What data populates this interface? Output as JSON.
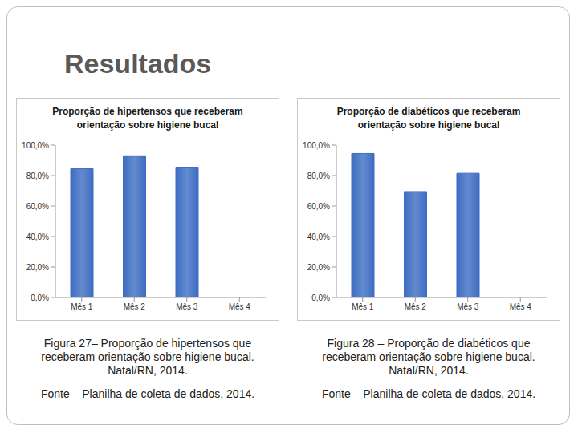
{
  "title": "Resultados",
  "chart_data": [
    {
      "type": "bar",
      "title": "Proporção de hipertensos que receberam orientação sobre higiene bucal",
      "categories": [
        "Mês 1",
        "Mês 2",
        "Mês 3",
        "Mês 4"
      ],
      "values": [
        84.5,
        93,
        85.5,
        null
      ],
      "color": "#3d6dc2",
      "ylim": [
        0,
        100
      ],
      "yticks": [
        {
          "value": 0,
          "label": "0,0%"
        },
        {
          "value": 20,
          "label": "20,0%"
        },
        {
          "value": 40,
          "label": "40,0%"
        },
        {
          "value": 60,
          "label": "60,0%"
        },
        {
          "value": 80,
          "label": "80,0%"
        },
        {
          "value": 100,
          "label": "100,0%"
        }
      ],
      "grid": false,
      "annotations": [
        "Figura 27– Proporção de hipertensos que receberam orientação sobre higiene bucal. Natal/RN, 2014.",
        "Fonte – Planilha de coleta de dados, 2014."
      ]
    },
    {
      "type": "bar",
      "title": "Proporção de diabéticos que receberam orientação sobre higiene bucal",
      "categories": [
        "Mês 1",
        "Mês 2",
        "Mês 3",
        "Mês 4"
      ],
      "values": [
        94.5,
        69.5,
        81.5,
        null
      ],
      "color": "#3d6dc2",
      "ylim": [
        0,
        100
      ],
      "yticks": [
        {
          "value": 0,
          "label": "0,0%"
        },
        {
          "value": 20,
          "label": "20,0%"
        },
        {
          "value": 40,
          "label": "40,0%"
        },
        {
          "value": 60,
          "label": "60,0%"
        },
        {
          "value": 80,
          "label": "80,0%"
        },
        {
          "value": 100,
          "label": "100,0%"
        }
      ],
      "grid": false,
      "annotations": [
        "Figura 28 – Proporção de diabéticos que receberam orientação sobre higiene bucal. Natal/RN, 2014.",
        "Fonte – Planilha de coleta de dados, 2014."
      ]
    }
  ]
}
